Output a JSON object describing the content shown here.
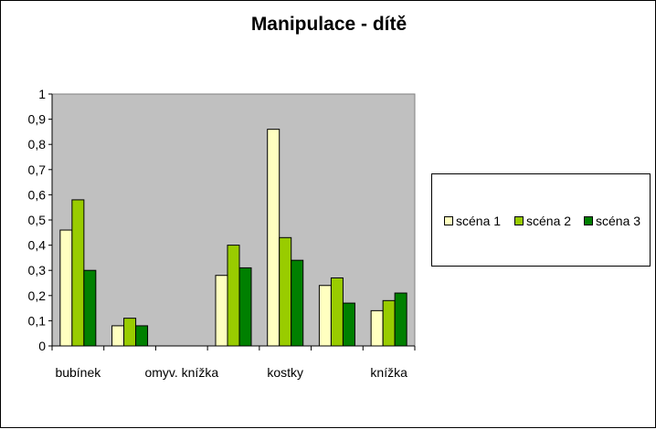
{
  "chart_data": {
    "type": "bar",
    "title": "Manipulace - dítě",
    "categories": [
      "bubínek",
      "",
      "omyv. knížka",
      "",
      "kostky",
      "",
      "knížka"
    ],
    "series": [
      {
        "name": "scéna 1",
        "color": "#ffffc0",
        "values": [
          0.46,
          0.08,
          0,
          0.28,
          0.86,
          0.24,
          0.14
        ]
      },
      {
        "name": "scéna 2",
        "color": "#99cc00",
        "values": [
          0.58,
          0.11,
          0,
          0.4,
          0.43,
          0.27,
          0.18
        ]
      },
      {
        "name": "scéna 3",
        "color": "#008000",
        "values": [
          0.3,
          0.08,
          0,
          0.31,
          0.34,
          0.17,
          0.21
        ]
      }
    ],
    "ylim": [
      0,
      1
    ],
    "yticks": [
      "0",
      "0,1",
      "0,2",
      "0,3",
      "0,4",
      "0,5",
      "0,6",
      "0,7",
      "0,8",
      "0,9",
      "1"
    ],
    "plot_background": "#c0c0c0",
    "grid": false,
    "legend_position": "right"
  }
}
